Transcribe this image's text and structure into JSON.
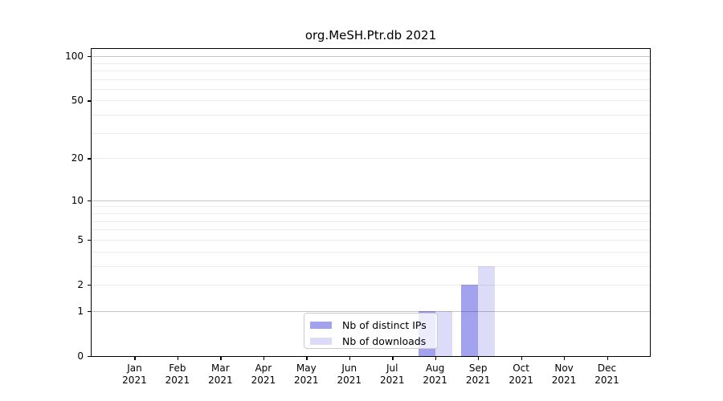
{
  "chart_data": {
    "type": "bar",
    "title": "org.MeSH.Ptr.db 2021",
    "categories": [
      "Jan",
      "Feb",
      "Mar",
      "Apr",
      "May",
      "Jun",
      "Jul",
      "Aug",
      "Sep",
      "Oct",
      "Nov",
      "Dec"
    ],
    "category_year": "2021",
    "series": [
      {
        "name": "Nb of distinct IPs",
        "color": "#a2a2ef",
        "values": [
          0,
          0,
          0,
          0,
          0,
          0,
          0,
          1,
          2,
          0,
          0,
          0
        ]
      },
      {
        "name": "Nb of downloads",
        "color": "#dcdcf8",
        "values": [
          0,
          0,
          0,
          0,
          0,
          0,
          0,
          1,
          3,
          0,
          0,
          0
        ]
      }
    ],
    "yscale": "log1p",
    "ylim": [
      0,
      112
    ],
    "yticks_labeled": [
      0,
      1,
      2,
      5,
      10,
      20,
      50,
      100
    ],
    "ygrid_major": [
      1,
      10,
      100
    ],
    "ygrid_minor": [
      2,
      3,
      4,
      5,
      6,
      7,
      8,
      9,
      20,
      30,
      40,
      50,
      60,
      70,
      80,
      90
    ],
    "grid": "horizontal",
    "legend_position": "inside-bottom-center",
    "xlabel": "",
    "ylabel": ""
  },
  "colors": {
    "major_grid": "#c6c6c6",
    "minor_grid": "#ebebeb",
    "spine": "#000000",
    "legend_border": "#cccccc",
    "legend_background": "rgba(255,255,255,0.8)",
    "background": "#ffffff"
  }
}
